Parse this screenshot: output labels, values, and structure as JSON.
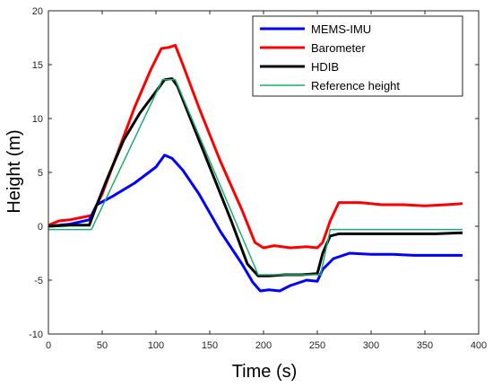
{
  "chart_data": {
    "type": "line",
    "title": "",
    "xlabel": "Time (s)",
    "ylabel": "Height (m)",
    "xlim": [
      0,
      400
    ],
    "ylim": [
      -10,
      20
    ],
    "xticks": [
      0,
      50,
      100,
      150,
      200,
      250,
      300,
      350,
      400
    ],
    "yticks": [
      -10,
      -5,
      0,
      5,
      10,
      15,
      20
    ],
    "xtick_labels": [
      "0",
      "50",
      "100",
      "150",
      "200",
      "250",
      "300",
      "350",
      "400"
    ],
    "ytick_labels": [
      "-10",
      "-5",
      "0",
      "5",
      "10",
      "15",
      "20"
    ],
    "grid": false,
    "legend_position": "top-right",
    "series": [
      {
        "name": "MEMS-IMU",
        "color": "#0000ff",
        "x": [
          0,
          20,
          38,
          45,
          60,
          80,
          100,
          108,
          115,
          125,
          140,
          160,
          180,
          190,
          197,
          205,
          215,
          225,
          240,
          250,
          255,
          265,
          280,
          300,
          320,
          340,
          360,
          385
        ],
        "y": [
          0,
          0.2,
          0.6,
          2.0,
          2.8,
          4.0,
          5.5,
          6.6,
          6.3,
          5.2,
          3.0,
          -0.5,
          -3.5,
          -5.2,
          -6.0,
          -5.9,
          -6.0,
          -5.5,
          -5.0,
          -5.1,
          -4.0,
          -3.0,
          -2.5,
          -2.6,
          -2.6,
          -2.7,
          -2.7,
          -2.7
        ]
      },
      {
        "name": "Barometer",
        "color": "#ff0000",
        "x": [
          0,
          10,
          20,
          30,
          40,
          50,
          65,
          80,
          95,
          105,
          112,
          118,
          125,
          140,
          160,
          180,
          192,
          200,
          210,
          225,
          240,
          250,
          255,
          262,
          270,
          290,
          310,
          330,
          350,
          370,
          385
        ],
        "y": [
          0.1,
          0.5,
          0.6,
          0.8,
          1.0,
          3.0,
          7.0,
          11.0,
          14.5,
          16.5,
          16.6,
          16.8,
          15.0,
          11.0,
          6.0,
          1.5,
          -1.5,
          -2.0,
          -1.8,
          -2.0,
          -1.9,
          -2.0,
          -1.5,
          0.5,
          2.2,
          2.2,
          2.0,
          2.0,
          1.9,
          2.0,
          2.1
        ]
      },
      {
        "name": "HDIB",
        "color": "#000000",
        "x": [
          0,
          20,
          38,
          45,
          55,
          70,
          85,
          100,
          108,
          115,
          120,
          130,
          150,
          170,
          185,
          195,
          205,
          220,
          235,
          250,
          255,
          262,
          270,
          300,
          330,
          360,
          385
        ],
        "y": [
          0.0,
          0.1,
          0.1,
          2.0,
          4.5,
          8.0,
          10.5,
          12.5,
          13.6,
          13.7,
          13.0,
          10.5,
          5.5,
          0.5,
          -3.5,
          -4.6,
          -4.6,
          -4.5,
          -4.5,
          -4.4,
          -2.5,
          -0.9,
          -0.7,
          -0.7,
          -0.7,
          -0.7,
          -0.6
        ]
      },
      {
        "name": "Reference height",
        "color": "#1aad6f",
        "x": [
          0,
          40,
          106,
          118,
          195,
          253,
          262,
          385
        ],
        "y": [
          -0.3,
          -0.3,
          13.6,
          13.6,
          -4.5,
          -4.5,
          -0.3,
          -0.3
        ]
      }
    ]
  }
}
